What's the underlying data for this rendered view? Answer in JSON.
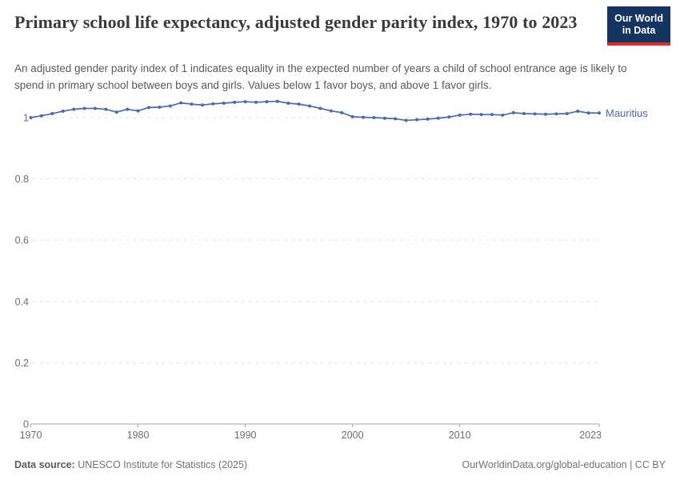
{
  "header": {
    "title": "Primary school life expectancy, adjusted gender parity index, 1970 to 2023",
    "logo": {
      "line1": "Our World",
      "line2": "in Data",
      "bg_color": "#163460",
      "accent_color": "#d0342c"
    }
  },
  "subtitle": "An adjusted gender parity index of 1 indicates equality in the expected number of years a child of school entrance age is likely to spend in primary school between boys and girls. Values below 1 favor boys, and above 1 favor girls.",
  "chart_data": {
    "type": "line",
    "title": "Primary school life expectancy, adjusted gender parity index, 1970 to 2023",
    "xlabel": "",
    "ylabel": "",
    "xlim": [
      1970,
      2023
    ],
    "ylim": [
      0,
      1.1
    ],
    "x_ticks": [
      1970,
      1980,
      1990,
      2000,
      2010,
      2023
    ],
    "y_ticks": [
      0,
      0.2,
      0.4,
      0.6,
      0.8,
      1
    ],
    "grid": "horizontal-dashed",
    "legend_position": "right-of-line-end",
    "series": [
      {
        "name": "Mauritius",
        "color": "#4c6ba5",
        "x": [
          1970,
          1971,
          1972,
          1973,
          1974,
          1975,
          1976,
          1977,
          1978,
          1979,
          1980,
          1981,
          1982,
          1983,
          1984,
          1985,
          1986,
          1987,
          1988,
          1989,
          1990,
          1991,
          1992,
          1993,
          1994,
          1995,
          1996,
          1997,
          1998,
          1999,
          2000,
          2001,
          2002,
          2003,
          2004,
          2005,
          2006,
          2007,
          2008,
          2009,
          2010,
          2011,
          2012,
          2013,
          2014,
          2015,
          2016,
          2017,
          2018,
          2019,
          2020,
          2021,
          2022,
          2023
        ],
        "values": [
          1.0,
          1.006,
          1.013,
          1.021,
          1.027,
          1.03,
          1.03,
          1.027,
          1.018,
          1.027,
          1.022,
          1.033,
          1.034,
          1.038,
          1.048,
          1.044,
          1.041,
          1.045,
          1.047,
          1.05,
          1.052,
          1.05,
          1.052,
          1.053,
          1.047,
          1.044,
          1.038,
          1.03,
          1.022,
          1.016,
          1.003,
          1.001,
          1.0,
          0.998,
          0.996,
          0.991,
          0.993,
          0.995,
          0.998,
          1.002,
          1.008,
          1.011,
          1.01,
          1.01,
          1.008,
          1.016,
          1.013,
          1.012,
          1.011,
          1.012,
          1.013,
          1.021,
          1.015,
          1.015
        ]
      }
    ]
  },
  "footer": {
    "data_source_label": "Data source:",
    "data_source": " UNESCO Institute for Statistics (2025)",
    "attribution": "OurWorldinData.org/global-education | CC BY"
  }
}
